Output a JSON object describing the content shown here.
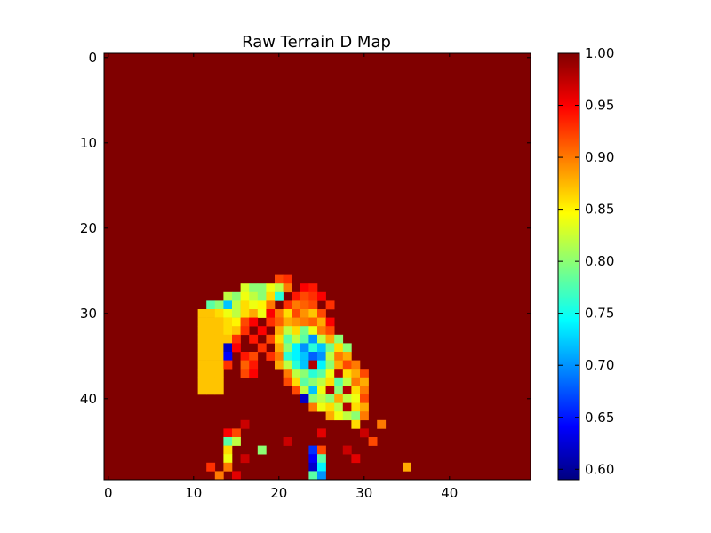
{
  "chart_data": {
    "type": "heatmap",
    "title": "Raw Terrain D Map",
    "xlabel": "",
    "ylabel": "",
    "grid": false,
    "rows": 50,
    "cols": 50,
    "xlim": [
      -0.5,
      49.5
    ],
    "ylim": [
      49.5,
      -0.5
    ],
    "x_ticks": [
      0,
      10,
      20,
      30,
      40
    ],
    "y_ticks": [
      0,
      10,
      20,
      30,
      40
    ],
    "colormap": "jet",
    "colorbar": {
      "min": 0.59,
      "max": 1.0,
      "ticks": [
        "0.60",
        "0.65",
        "0.70",
        "0.75",
        "0.80",
        "0.85",
        "0.90",
        "0.95",
        "1.00"
      ],
      "placement": "right"
    },
    "background_value": 1.0,
    "cells": [
      {
        "r": 26,
        "c": 20,
        "v": 0.92
      },
      {
        "r": 26,
        "c": 21,
        "v": 0.93
      },
      {
        "r": 27,
        "c": 16,
        "v": 0.83
      },
      {
        "r": 27,
        "c": 17,
        "v": 0.8
      },
      {
        "r": 27,
        "c": 18,
        "v": 0.8
      },
      {
        "r": 27,
        "c": 19,
        "v": 0.84
      },
      {
        "r": 27,
        "c": 20,
        "v": 0.82
      },
      {
        "r": 27,
        "c": 21,
        "v": 0.9
      },
      {
        "r": 27,
        "c": 23,
        "v": 0.95
      },
      {
        "r": 27,
        "c": 24,
        "v": 0.94
      },
      {
        "r": 28,
        "c": 14,
        "v": 0.82
      },
      {
        "r": 28,
        "c": 15,
        "v": 0.8
      },
      {
        "r": 28,
        "c": 16,
        "v": 0.84
      },
      {
        "r": 28,
        "c": 17,
        "v": 0.82
      },
      {
        "r": 28,
        "c": 18,
        "v": 0.8
      },
      {
        "r": 28,
        "c": 19,
        "v": 0.86
      },
      {
        "r": 28,
        "c": 20,
        "v": 0.76
      },
      {
        "r": 28,
        "c": 22,
        "v": 0.94
      },
      {
        "r": 28,
        "c": 23,
        "v": 0.92
      },
      {
        "r": 28,
        "c": 24,
        "v": 0.93
      },
      {
        "r": 28,
        "c": 25,
        "v": 0.95
      },
      {
        "r": 29,
        "c": 12,
        "v": 0.78
      },
      {
        "r": 29,
        "c": 13,
        "v": 0.8
      },
      {
        "r": 29,
        "c": 14,
        "v": 0.72
      },
      {
        "r": 29,
        "c": 15,
        "v": 0.82
      },
      {
        "r": 29,
        "c": 16,
        "v": 0.86
      },
      {
        "r": 29,
        "c": 17,
        "v": 0.84
      },
      {
        "r": 29,
        "c": 18,
        "v": 0.85
      },
      {
        "r": 29,
        "c": 19,
        "v": 0.9
      },
      {
        "r": 29,
        "c": 21,
        "v": 0.93
      },
      {
        "r": 29,
        "c": 22,
        "v": 0.9
      },
      {
        "r": 29,
        "c": 23,
        "v": 0.91
      },
      {
        "r": 29,
        "c": 24,
        "v": 0.92
      },
      {
        "r": 29,
        "c": 26,
        "v": 0.93
      },
      {
        "r": 30,
        "c": 11,
        "v": 0.87
      },
      {
        "r": 30,
        "c": 12,
        "v": 0.87
      },
      {
        "r": 30,
        "c": 13,
        "v": 0.86
      },
      {
        "r": 30,
        "c": 14,
        "v": 0.84
      },
      {
        "r": 30,
        "c": 15,
        "v": 0.82
      },
      {
        "r": 30,
        "c": 16,
        "v": 0.86
      },
      {
        "r": 30,
        "c": 17,
        "v": 0.88
      },
      {
        "r": 30,
        "c": 18,
        "v": 0.84
      },
      {
        "r": 30,
        "c": 19,
        "v": 0.95
      },
      {
        "r": 30,
        "c": 20,
        "v": 0.9
      },
      {
        "r": 30,
        "c": 21,
        "v": 0.86
      },
      {
        "r": 30,
        "c": 22,
        "v": 0.92
      },
      {
        "r": 30,
        "c": 23,
        "v": 0.89
      },
      {
        "r": 30,
        "c": 24,
        "v": 0.87
      },
      {
        "r": 30,
        "c": 25,
        "v": 0.92
      },
      {
        "r": 31,
        "c": 11,
        "v": 0.87
      },
      {
        "r": 31,
        "c": 12,
        "v": 0.87
      },
      {
        "r": 31,
        "c": 13,
        "v": 0.87
      },
      {
        "r": 31,
        "c": 14,
        "v": 0.86
      },
      {
        "r": 31,
        "c": 15,
        "v": 0.85
      },
      {
        "r": 31,
        "c": 16,
        "v": 0.92
      },
      {
        "r": 31,
        "c": 17,
        "v": 0.95
      },
      {
        "r": 31,
        "c": 19,
        "v": 0.93
      },
      {
        "r": 31,
        "c": 20,
        "v": 0.91
      },
      {
        "r": 31,
        "c": 21,
        "v": 0.88
      },
      {
        "r": 31,
        "c": 22,
        "v": 0.89
      },
      {
        "r": 31,
        "c": 23,
        "v": 0.9
      },
      {
        "r": 31,
        "c": 24,
        "v": 0.91
      },
      {
        "r": 31,
        "c": 25,
        "v": 0.88
      },
      {
        "r": 31,
        "c": 26,
        "v": 0.95
      },
      {
        "r": 32,
        "c": 11,
        "v": 0.87
      },
      {
        "r": 32,
        "c": 12,
        "v": 0.87
      },
      {
        "r": 32,
        "c": 13,
        "v": 0.87
      },
      {
        "r": 32,
        "c": 14,
        "v": 0.86
      },
      {
        "r": 32,
        "c": 15,
        "v": 0.87
      },
      {
        "r": 32,
        "c": 16,
        "v": 0.93
      },
      {
        "r": 32,
        "c": 18,
        "v": 0.95
      },
      {
        "r": 32,
        "c": 20,
        "v": 0.88
      },
      {
        "r": 32,
        "c": 21,
        "v": 0.82
      },
      {
        "r": 32,
        "c": 22,
        "v": 0.86
      },
      {
        "r": 32,
        "c": 23,
        "v": 0.79
      },
      {
        "r": 32,
        "c": 24,
        "v": 0.84
      },
      {
        "r": 32,
        "c": 25,
        "v": 0.9
      },
      {
        "r": 32,
        "c": 26,
        "v": 0.92
      },
      {
        "r": 33,
        "c": 11,
        "v": 0.87
      },
      {
        "r": 33,
        "c": 12,
        "v": 0.87
      },
      {
        "r": 33,
        "c": 13,
        "v": 0.87
      },
      {
        "r": 33,
        "c": 14,
        "v": 0.87
      },
      {
        "r": 33,
        "c": 15,
        "v": 0.93
      },
      {
        "r": 33,
        "c": 17,
        "v": 0.94
      },
      {
        "r": 33,
        "c": 19,
        "v": 0.92
      },
      {
        "r": 33,
        "c": 20,
        "v": 0.86
      },
      {
        "r": 33,
        "c": 21,
        "v": 0.78
      },
      {
        "r": 33,
        "c": 22,
        "v": 0.82
      },
      {
        "r": 33,
        "c": 23,
        "v": 0.78
      },
      {
        "r": 33,
        "c": 24,
        "v": 0.7
      },
      {
        "r": 33,
        "c": 25,
        "v": 0.82
      },
      {
        "r": 33,
        "c": 26,
        "v": 0.88
      },
      {
        "r": 33,
        "c": 27,
        "v": 0.8
      },
      {
        "r": 34,
        "c": 11,
        "v": 0.87
      },
      {
        "r": 34,
        "c": 12,
        "v": 0.87
      },
      {
        "r": 34,
        "c": 13,
        "v": 0.87
      },
      {
        "r": 34,
        "c": 14,
        "v": 0.62
      },
      {
        "r": 34,
        "c": 15,
        "v": 0.95
      },
      {
        "r": 34,
        "c": 18,
        "v": 0.93
      },
      {
        "r": 34,
        "c": 20,
        "v": 0.88
      },
      {
        "r": 34,
        "c": 21,
        "v": 0.8
      },
      {
        "r": 34,
        "c": 22,
        "v": 0.74
      },
      {
        "r": 34,
        "c": 23,
        "v": 0.7
      },
      {
        "r": 34,
        "c": 24,
        "v": 0.76
      },
      {
        "r": 34,
        "c": 25,
        "v": 0.72
      },
      {
        "r": 34,
        "c": 26,
        "v": 0.79
      },
      {
        "r": 34,
        "c": 27,
        "v": 0.86
      },
      {
        "r": 34,
        "c": 28,
        "v": 0.8
      },
      {
        "r": 35,
        "c": 11,
        "v": 0.87
      },
      {
        "r": 35,
        "c": 12,
        "v": 0.87
      },
      {
        "r": 35,
        "c": 13,
        "v": 0.87
      },
      {
        "r": 35,
        "c": 14,
        "v": 0.64
      },
      {
        "r": 35,
        "c": 16,
        "v": 0.94
      },
      {
        "r": 35,
        "c": 17,
        "v": 0.92
      },
      {
        "r": 35,
        "c": 19,
        "v": 0.93
      },
      {
        "r": 35,
        "c": 20,
        "v": 0.9
      },
      {
        "r": 35,
        "c": 21,
        "v": 0.76
      },
      {
        "r": 35,
        "c": 22,
        "v": 0.74
      },
      {
        "r": 35,
        "c": 23,
        "v": 0.72
      },
      {
        "r": 35,
        "c": 24,
        "v": 0.68
      },
      {
        "r": 35,
        "c": 25,
        "v": 0.7
      },
      {
        "r": 35,
        "c": 26,
        "v": 0.82
      },
      {
        "r": 35,
        "c": 27,
        "v": 0.9
      },
      {
        "r": 35,
        "c": 28,
        "v": 0.88
      },
      {
        "r": 36,
        "c": 11,
        "v": 0.87
      },
      {
        "r": 36,
        "c": 12,
        "v": 0.87
      },
      {
        "r": 36,
        "c": 13,
        "v": 0.87
      },
      {
        "r": 36,
        "c": 14,
        "v": 0.93
      },
      {
        "r": 36,
        "c": 16,
        "v": 0.91
      },
      {
        "r": 36,
        "c": 17,
        "v": 0.94
      },
      {
        "r": 36,
        "c": 20,
        "v": 0.88
      },
      {
        "r": 36,
        "c": 21,
        "v": 0.82
      },
      {
        "r": 36,
        "c": 22,
        "v": 0.76
      },
      {
        "r": 36,
        "c": 23,
        "v": 0.72
      },
      {
        "r": 36,
        "c": 24,
        "v": 0.98
      },
      {
        "r": 36,
        "c": 25,
        "v": 0.74
      },
      {
        "r": 36,
        "c": 26,
        "v": 0.8
      },
      {
        "r": 36,
        "c": 27,
        "v": 0.88
      },
      {
        "r": 36,
        "c": 28,
        "v": 0.92
      },
      {
        "r": 36,
        "c": 29,
        "v": 0.9
      },
      {
        "r": 37,
        "c": 11,
        "v": 0.87
      },
      {
        "r": 37,
        "c": 12,
        "v": 0.87
      },
      {
        "r": 37,
        "c": 13,
        "v": 0.87
      },
      {
        "r": 37,
        "c": 16,
        "v": 0.92
      },
      {
        "r": 37,
        "c": 17,
        "v": 0.95
      },
      {
        "r": 37,
        "c": 21,
        "v": 0.9
      },
      {
        "r": 37,
        "c": 22,
        "v": 0.82
      },
      {
        "r": 37,
        "c": 23,
        "v": 0.8
      },
      {
        "r": 37,
        "c": 24,
        "v": 0.76
      },
      {
        "r": 37,
        "c": 25,
        "v": 0.78
      },
      {
        "r": 37,
        "c": 26,
        "v": 0.84
      },
      {
        "r": 37,
        "c": 27,
        "v": 0.98
      },
      {
        "r": 37,
        "c": 28,
        "v": 0.86
      },
      {
        "r": 37,
        "c": 29,
        "v": 0.88
      },
      {
        "r": 37,
        "c": 30,
        "v": 0.92
      },
      {
        "r": 38,
        "c": 11,
        "v": 0.87
      },
      {
        "r": 38,
        "c": 12,
        "v": 0.87
      },
      {
        "r": 38,
        "c": 13,
        "v": 0.87
      },
      {
        "r": 38,
        "c": 21,
        "v": 0.92
      },
      {
        "r": 38,
        "c": 22,
        "v": 0.86
      },
      {
        "r": 38,
        "c": 23,
        "v": 0.78
      },
      {
        "r": 38,
        "c": 24,
        "v": 0.8
      },
      {
        "r": 38,
        "c": 25,
        "v": 0.82
      },
      {
        "r": 38,
        "c": 26,
        "v": 0.86
      },
      {
        "r": 38,
        "c": 27,
        "v": 0.78
      },
      {
        "r": 38,
        "c": 28,
        "v": 0.82
      },
      {
        "r": 38,
        "c": 29,
        "v": 0.9
      },
      {
        "r": 38,
        "c": 30,
        "v": 0.88
      },
      {
        "r": 39,
        "c": 11,
        "v": 0.87
      },
      {
        "r": 39,
        "c": 12,
        "v": 0.87
      },
      {
        "r": 39,
        "c": 13,
        "v": 0.87
      },
      {
        "r": 39,
        "c": 22,
        "v": 0.92
      },
      {
        "r": 39,
        "c": 23,
        "v": 0.82
      },
      {
        "r": 39,
        "c": 24,
        "v": 0.72
      },
      {
        "r": 39,
        "c": 25,
        "v": 0.84
      },
      {
        "r": 39,
        "c": 26,
        "v": 0.98
      },
      {
        "r": 39,
        "c": 27,
        "v": 0.8
      },
      {
        "r": 39,
        "c": 28,
        "v": 0.98
      },
      {
        "r": 39,
        "c": 29,
        "v": 0.86
      },
      {
        "r": 39,
        "c": 30,
        "v": 0.9
      },
      {
        "r": 40,
        "c": 23,
        "v": 0.62
      },
      {
        "r": 40,
        "c": 24,
        "v": 0.8
      },
      {
        "r": 40,
        "c": 25,
        "v": 0.82
      },
      {
        "r": 40,
        "c": 26,
        "v": 0.8
      },
      {
        "r": 40,
        "c": 27,
        "v": 0.88
      },
      {
        "r": 40,
        "c": 28,
        "v": 0.82
      },
      {
        "r": 40,
        "c": 29,
        "v": 0.84
      },
      {
        "r": 40,
        "c": 30,
        "v": 0.92
      },
      {
        "r": 41,
        "c": 24,
        "v": 0.9
      },
      {
        "r": 41,
        "c": 25,
        "v": 0.84
      },
      {
        "r": 41,
        "c": 26,
        "v": 0.86
      },
      {
        "r": 41,
        "c": 27,
        "v": 0.82
      },
      {
        "r": 41,
        "c": 28,
        "v": 0.98
      },
      {
        "r": 41,
        "c": 29,
        "v": 0.86
      },
      {
        "r": 41,
        "c": 30,
        "v": 0.88
      },
      {
        "r": 42,
        "c": 26,
        "v": 0.88
      },
      {
        "r": 42,
        "c": 27,
        "v": 0.84
      },
      {
        "r": 42,
        "c": 28,
        "v": 0.82
      },
      {
        "r": 42,
        "c": 29,
        "v": 0.8
      },
      {
        "r": 42,
        "c": 30,
        "v": 0.9
      },
      {
        "r": 43,
        "c": 16,
        "v": 0.97
      },
      {
        "r": 43,
        "c": 29,
        "v": 0.86
      },
      {
        "r": 43,
        "c": 32,
        "v": 0.9
      },
      {
        "r": 44,
        "c": 14,
        "v": 0.95
      },
      {
        "r": 44,
        "c": 15,
        "v": 0.92
      },
      {
        "r": 44,
        "c": 25,
        "v": 0.96
      },
      {
        "r": 44,
        "c": 30,
        "v": 0.97
      },
      {
        "r": 45,
        "c": 14,
        "v": 0.78
      },
      {
        "r": 45,
        "c": 15,
        "v": 0.82
      },
      {
        "r": 45,
        "c": 21,
        "v": 0.97
      },
      {
        "r": 45,
        "c": 31,
        "v": 0.92
      },
      {
        "r": 46,
        "c": 14,
        "v": 0.86
      },
      {
        "r": 46,
        "c": 18,
        "v": 0.8
      },
      {
        "r": 46,
        "c": 24,
        "v": 0.66
      },
      {
        "r": 46,
        "c": 25,
        "v": 0.92
      },
      {
        "r": 46,
        "c": 28,
        "v": 0.97
      },
      {
        "r": 47,
        "c": 14,
        "v": 0.84
      },
      {
        "r": 47,
        "c": 16,
        "v": 0.97
      },
      {
        "r": 47,
        "c": 24,
        "v": 0.64
      },
      {
        "r": 47,
        "c": 25,
        "v": 0.78
      },
      {
        "r": 47,
        "c": 29,
        "v": 0.96
      },
      {
        "r": 48,
        "c": 12,
        "v": 0.93
      },
      {
        "r": 48,
        "c": 14,
        "v": 0.9
      },
      {
        "r": 48,
        "c": 24,
        "v": 0.62
      },
      {
        "r": 48,
        "c": 25,
        "v": 0.74
      },
      {
        "r": 48,
        "c": 35,
        "v": 0.88
      },
      {
        "r": 49,
        "c": 13,
        "v": 0.9
      },
      {
        "r": 49,
        "c": 15,
        "v": 0.96
      },
      {
        "r": 49,
        "c": 24,
        "v": 0.78
      },
      {
        "r": 49,
        "c": 25,
        "v": 0.7
      }
    ]
  }
}
